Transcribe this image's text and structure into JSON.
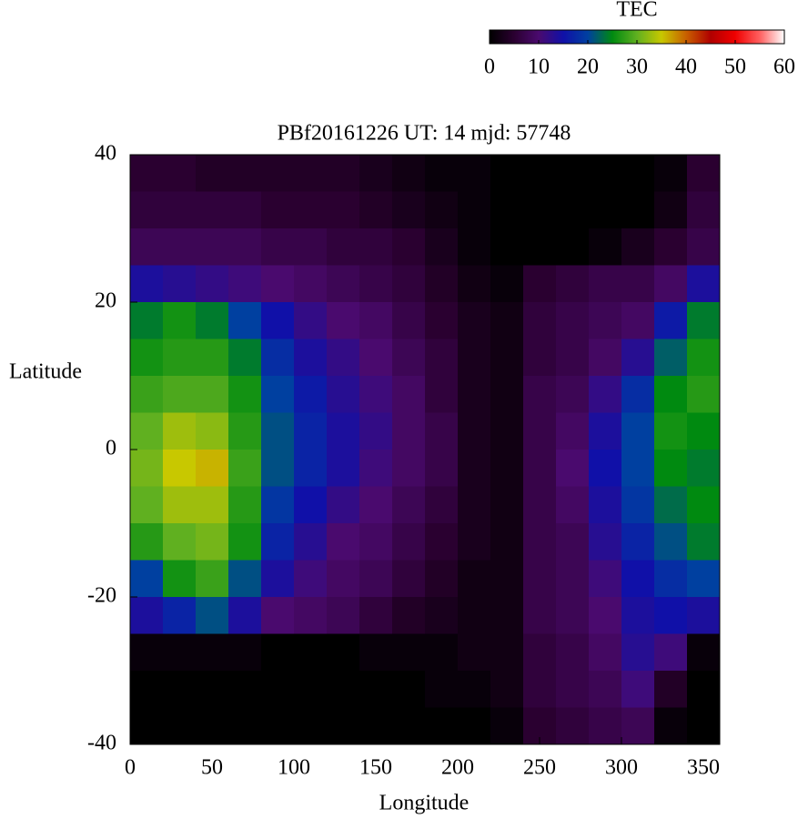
{
  "chart_data": {
    "type": "heatmap",
    "title": "PBf20161226  UT: 14  mjd: 57748",
    "xlabel": "Longitude",
    "ylabel": "Latitude",
    "x": [
      10,
      30,
      50,
      70,
      90,
      110,
      130,
      150,
      170,
      190,
      210,
      230,
      250,
      270,
      290,
      310,
      330,
      350
    ],
    "y": [
      37.5,
      32.5,
      27.5,
      22.5,
      17.5,
      12.5,
      7.5,
      2.5,
      -2.5,
      -7.5,
      -12.5,
      -17.5,
      -22.5,
      -27.5,
      -32.5,
      -37.5
    ],
    "values": [
      [
        5,
        5,
        4,
        4,
        4,
        4,
        4,
        3,
        2,
        1,
        1,
        0,
        0,
        0,
        0,
        0,
        1,
        5
      ],
      [
        6,
        6,
        6,
        6,
        5,
        5,
        5,
        4,
        3,
        2,
        1,
        0,
        0,
        0,
        0,
        0,
        2,
        6
      ],
      [
        8,
        8,
        8,
        8,
        7,
        7,
        6,
        6,
        5,
        3,
        1,
        0,
        0,
        0,
        1,
        3,
        5,
        7
      ],
      [
        14,
        13,
        12,
        11,
        10,
        9,
        8,
        7,
        6,
        4,
        2,
        1,
        5,
        6,
        7,
        7,
        9,
        14
      ],
      [
        24,
        26,
        24,
        20,
        15,
        12,
        10,
        9,
        7,
        5,
        3,
        2,
        6,
        7,
        8,
        9,
        16,
        24
      ],
      [
        26,
        27,
        27,
        24,
        18,
        14,
        12,
        10,
        8,
        6,
        3,
        2,
        6,
        7,
        9,
        13,
        22,
        26
      ],
      [
        28,
        29,
        29,
        26,
        20,
        16,
        13,
        11,
        9,
        6,
        3,
        2,
        7,
        8,
        12,
        18,
        25,
        27
      ],
      [
        30,
        33,
        32,
        27,
        21,
        17,
        14,
        12,
        9,
        7,
        3,
        2,
        7,
        9,
        14,
        20,
        26,
        25
      ],
      [
        31,
        35,
        36,
        28,
        21,
        17,
        14,
        11,
        9,
        7,
        3,
        2,
        7,
        10,
        15,
        20,
        25,
        24
      ],
      [
        30,
        33,
        33,
        27,
        19,
        15,
        12,
        10,
        8,
        6,
        3,
        2,
        7,
        9,
        14,
        19,
        23,
        25
      ],
      [
        27,
        30,
        31,
        26,
        17,
        13,
        10,
        9,
        7,
        5,
        3,
        2,
        7,
        8,
        13,
        17,
        21,
        24
      ],
      [
        20,
        26,
        28,
        21,
        14,
        11,
        9,
        8,
        6,
        4,
        2,
        2,
        7,
        8,
        11,
        15,
        18,
        20
      ],
      [
        14,
        17,
        21,
        14,
        10,
        9,
        8,
        6,
        4,
        3,
        2,
        2,
        7,
        8,
        10,
        14,
        15,
        14
      ],
      [
        1,
        1,
        1,
        1,
        0,
        0,
        0,
        1,
        1,
        1,
        2,
        2,
        6,
        7,
        9,
        13,
        11,
        1
      ],
      [
        0,
        0,
        0,
        0,
        0,
        0,
        0,
        0,
        0,
        1,
        1,
        2,
        6,
        7,
        8,
        11,
        4,
        0
      ],
      [
        0,
        0,
        0,
        0,
        0,
        0,
        0,
        0,
        0,
        0,
        0,
        1,
        5,
        6,
        7,
        8,
        1,
        0
      ]
    ],
    "xlim": [
      0,
      360
    ],
    "xticks": [
      0,
      50,
      100,
      150,
      200,
      250,
      300,
      350
    ],
    "ylim": [
      -40,
      40
    ],
    "yticks": [
      -40,
      -20,
      0,
      20,
      40
    ],
    "colorbar": {
      "label": "TEC",
      "lim": [
        0,
        60
      ],
      "ticks": [
        0,
        10,
        20,
        30,
        40,
        50,
        60
      ],
      "colorscale": [
        [
          0,
          "#000000"
        ],
        [
          5,
          "#2a0030"
        ],
        [
          10,
          "#4a0a6e"
        ],
        [
          15,
          "#1010a8"
        ],
        [
          20,
          "#0040a0"
        ],
        [
          25,
          "#008a10"
        ],
        [
          30,
          "#60b020"
        ],
        [
          35,
          "#c8c800"
        ],
        [
          40,
          "#c86000"
        ],
        [
          45,
          "#b00000"
        ],
        [
          50,
          "#f00000"
        ],
        [
          55,
          "#ff6060"
        ],
        [
          60,
          "#ffffff"
        ]
      ]
    }
  }
}
